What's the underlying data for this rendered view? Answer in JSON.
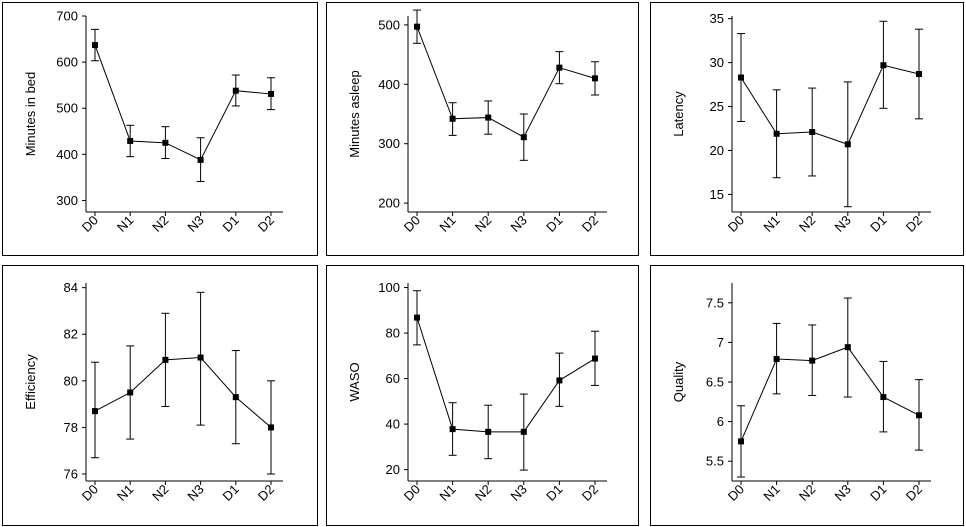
{
  "chart_data": [
    {
      "type": "line",
      "title": "",
      "xlabel": "",
      "ylabel": "Minutes in bed",
      "categories": [
        "D0",
        "N1",
        "N2",
        "N3",
        "D1",
        "D2"
      ],
      "values": [
        637,
        429,
        425,
        388,
        538,
        531
      ],
      "error_low": [
        603,
        395,
        391,
        341,
        505,
        497
      ],
      "error_high": [
        671,
        463,
        460,
        436,
        572,
        566
      ],
      "ylim": [
        275,
        700
      ],
      "yticks": [
        300,
        400,
        500,
        600,
        700
      ],
      "grid": false,
      "error_bars": true
    },
    {
      "type": "line",
      "title": "",
      "xlabel": "",
      "ylabel": "Minutes asleep",
      "categories": [
        "D0",
        "N1",
        "N2",
        "N3",
        "D1",
        "D2"
      ],
      "values": [
        497,
        342,
        344,
        311,
        428,
        410
      ],
      "error_low": [
        469,
        314,
        316,
        272,
        401,
        382
      ],
      "error_high": [
        525,
        369,
        372,
        350,
        455,
        438
      ],
      "ylim": [
        185,
        515
      ],
      "yticks": [
        200,
        300,
        400,
        500
      ],
      "grid": false,
      "error_bars": true
    },
    {
      "type": "line",
      "title": "",
      "xlabel": "",
      "ylabel": "Latency",
      "categories": [
        "D0",
        "N1",
        "N2",
        "N3",
        "D1",
        "D2"
      ],
      "values": [
        28.3,
        21.9,
        22.1,
        20.7,
        29.7,
        28.7
      ],
      "error_low": [
        23.3,
        16.9,
        17.1,
        13.6,
        24.8,
        23.6
      ],
      "error_high": [
        33.3,
        26.9,
        27.1,
        27.8,
        34.7,
        33.8
      ],
      "ylim": [
        13.0,
        35.3
      ],
      "yticks": [
        15,
        20,
        25,
        30,
        35
      ],
      "grid": false,
      "error_bars": true
    },
    {
      "type": "line",
      "title": "",
      "xlabel": "",
      "ylabel": "Efficiency",
      "categories": [
        "D0",
        "N1",
        "N2",
        "N3",
        "D1",
        "D2"
      ],
      "values": [
        78.7,
        79.5,
        80.9,
        81.0,
        79.3,
        78.0
      ],
      "error_low": [
        76.7,
        77.5,
        78.9,
        78.1,
        77.3,
        76.0
      ],
      "error_high": [
        80.8,
        81.5,
        82.9,
        83.8,
        81.3,
        80.0
      ],
      "ylim": [
        75.7,
        84.2
      ],
      "yticks": [
        76,
        78,
        80,
        82,
        84
      ],
      "grid": false,
      "error_bars": true
    },
    {
      "type": "line",
      "title": "",
      "xlabel": "",
      "ylabel": "WASO",
      "categories": [
        "D0",
        "N1",
        "N2",
        "N3",
        "D1",
        "D2"
      ],
      "values": [
        86.8,
        37.8,
        36.6,
        36.6,
        59.2,
        68.8
      ],
      "error_low": [
        74.8,
        26.3,
        24.8,
        19.8,
        47.8,
        57.0
      ],
      "error_high": [
        98.6,
        49.4,
        48.3,
        53.2,
        71.2,
        80.8
      ],
      "ylim": [
        15,
        102
      ],
      "yticks": [
        20,
        40,
        60,
        80,
        100
      ],
      "grid": false,
      "error_bars": true
    },
    {
      "type": "line",
      "title": "",
      "xlabel": "",
      "ylabel": "Quality",
      "categories": [
        "D0",
        "N1",
        "N2",
        "N3",
        "D1",
        "D2"
      ],
      "values": [
        5.75,
        6.79,
        6.77,
        6.94,
        6.31,
        6.08
      ],
      "error_low": [
        5.3,
        6.35,
        6.33,
        6.31,
        5.87,
        5.64
      ],
      "error_high": [
        6.2,
        7.24,
        7.22,
        7.56,
        6.76,
        6.53
      ],
      "ylim": [
        5.25,
        7.75
      ],
      "yticks": [
        5.5,
        6.0,
        6.5,
        7.0,
        7.5
      ],
      "grid": false,
      "error_bars": true
    }
  ]
}
